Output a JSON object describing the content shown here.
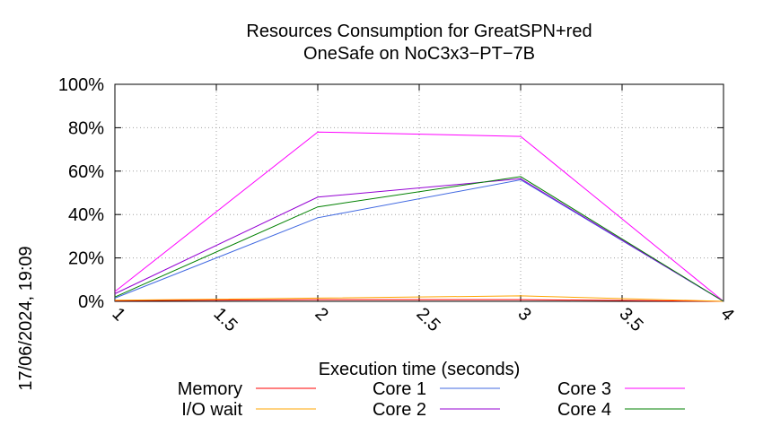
{
  "chart_data": {
    "type": "line",
    "title_lines": [
      "Resources Consumption for GreatSPN+red",
      "OneSafe on NoC3x3−PT−7B"
    ],
    "xlabel": "Execution time (seconds)",
    "ylabel": "",
    "side_label": "17/06/2024, 19:09",
    "xlim": [
      1,
      4
    ],
    "ylim": [
      0,
      100
    ],
    "x_ticks": [
      {
        "value": 1,
        "label": "1"
      },
      {
        "value": 1.5,
        "label": "1.5"
      },
      {
        "value": 2,
        "label": "2"
      },
      {
        "value": 2.5,
        "label": "2.5"
      },
      {
        "value": 3,
        "label": "3"
      },
      {
        "value": 3.5,
        "label": "3.5"
      },
      {
        "value": 4,
        "label": "4"
      }
    ],
    "y_ticks": [
      {
        "value": 0,
        "label": "0%"
      },
      {
        "value": 20,
        "label": "20%"
      },
      {
        "value": 40,
        "label": "40%"
      },
      {
        "value": 60,
        "label": "60%"
      },
      {
        "value": 80,
        "label": "80%"
      },
      {
        "value": 100,
        "label": "100%"
      }
    ],
    "grid": true,
    "legend_position": "bottom",
    "x": [
      1,
      2,
      3,
      4
    ],
    "series": [
      {
        "name": "Memory",
        "color": "#ff0000",
        "values": [
          0.3,
          0.8,
          0.8,
          0
        ]
      },
      {
        "name": "I/O wait",
        "color": "#ffa500",
        "values": [
          0.5,
          1.5,
          2.5,
          0
        ]
      },
      {
        "name": "Core 1",
        "color": "#4169e1",
        "values": [
          1.5,
          38.5,
          56,
          0
        ]
      },
      {
        "name": "Core 2",
        "color": "#9400d3",
        "values": [
          3.5,
          48,
          56.5,
          0
        ]
      },
      {
        "name": "Core 3",
        "color": "#ff00ff",
        "values": [
          4.5,
          78,
          76,
          0
        ]
      },
      {
        "name": "Core 4",
        "color": "#008000",
        "values": [
          2,
          43.5,
          57.5,
          0
        ]
      }
    ]
  }
}
